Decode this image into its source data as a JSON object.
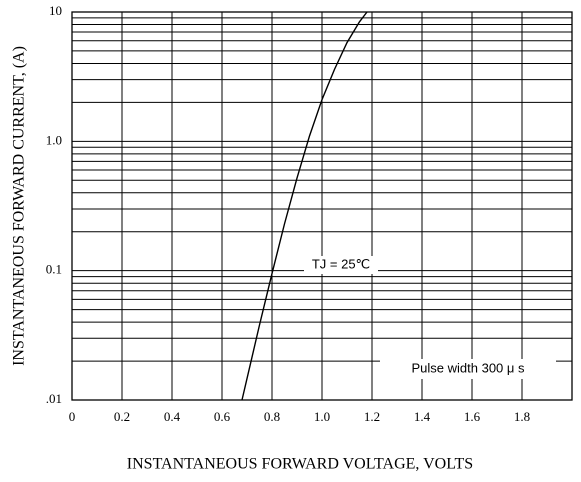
{
  "chart_data": {
    "type": "line",
    "ylabel": "INSTANTANEOUS FORWARD CURRENT, (A)",
    "xlabel": "INSTANTANEOUS FORWARD VOLTAGE, VOLTS",
    "x": [
      0.68,
      0.75,
      0.8,
      0.85,
      0.9,
      0.95,
      1.0,
      1.05,
      1.1,
      1.15,
      1.18
    ],
    "values": [
      0.01,
      0.038,
      0.095,
      0.23,
      0.52,
      1.1,
      2.1,
      3.6,
      5.8,
      8.4,
      10
    ],
    "color": "#000000",
    "xlim": [
      0,
      2.0
    ],
    "xticks": [
      0,
      0.2,
      0.4,
      0.6,
      0.8,
      {
        "value": 1.0,
        "label": "1.0"
      },
      1.2,
      1.4,
      1.6,
      1.8
    ],
    "ylim": [
      0.01,
      10
    ],
    "yticks": [
      {
        "value": 0.01,
        "label": ".01"
      },
      0.1,
      {
        "value": 1,
        "label": "1.0"
      },
      10
    ],
    "ylog": true,
    "grid": true,
    "annotations": [
      "TJ = 25℃",
      "Pulse width 300 μ s"
    ]
  }
}
